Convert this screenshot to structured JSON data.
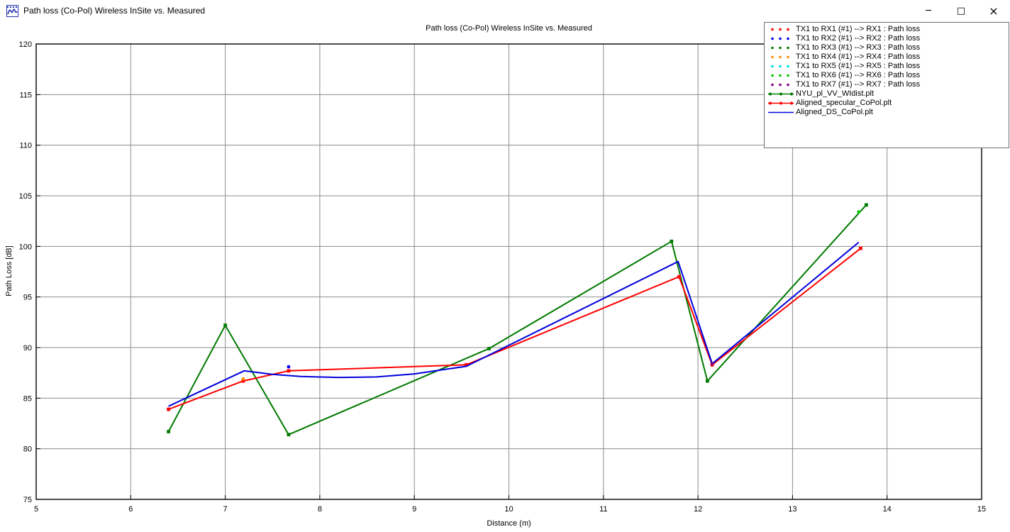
{
  "window": {
    "title": "Path loss (Co-Pol) Wireless InSite vs. Measured",
    "icons": {
      "minimize": "─",
      "maximize": "□",
      "close": "×"
    }
  },
  "chart_data": {
    "type": "line",
    "title": "Path loss (Co-Pol) Wireless InSite vs. Measured",
    "xlabel": "Distance (m)",
    "ylabel": "Path Loss [dB]",
    "xlim": [
      5,
      15
    ],
    "ylim": [
      75,
      120
    ],
    "x_ticks": [
      5,
      6,
      7,
      8,
      9,
      10,
      11,
      12,
      13,
      14,
      15
    ],
    "y_ticks": [
      75,
      80,
      85,
      90,
      95,
      100,
      105,
      110,
      115,
      120
    ],
    "grid": true,
    "grid_color": "#8c8c8c",
    "axis_color": "#000000",
    "legend_position": "top-right",
    "series": [
      {
        "name": "TX1 to RX1 (#1) --> RX1 : Path loss",
        "type": "scatter",
        "color": "#ff0000",
        "legend_marker": "dots",
        "points": [
          [
            6.4,
            83.9
          ]
        ]
      },
      {
        "name": "TX1 to RX2 (#1) --> RX2 : Path loss",
        "type": "scatter",
        "color": "#0000ff",
        "legend_marker": "dots",
        "points": [
          [
            7.67,
            88.1
          ]
        ]
      },
      {
        "name": "TX1 to RX3 (#1) --> RX3 : Path loss",
        "type": "scatter",
        "color": "#007a00",
        "legend_marker": "dots",
        "points": []
      },
      {
        "name": "TX1 to RX4 (#1) --> RX4 : Path loss",
        "type": "scatter",
        "color": "#ff8c00",
        "legend_marker": "dots",
        "points": [
          [
            7.19,
            86.9
          ]
        ]
      },
      {
        "name": "TX1 to RX5 (#1) --> RX5 : Path loss",
        "type": "scatter",
        "color": "#00dede",
        "legend_marker": "dots",
        "points": []
      },
      {
        "name": "TX1 to RX6 (#1) --> RX6 : Path loss",
        "type": "scatter",
        "color": "#00cc00",
        "legend_marker": "dots",
        "points": [
          [
            13.7,
            103.4
          ]
        ]
      },
      {
        "name": "TX1 to RX7 (#1) --> RX7 : Path loss",
        "type": "scatter",
        "color": "#800080",
        "legend_marker": "dots",
        "points": [
          [
            12.15,
            88.4
          ]
        ]
      },
      {
        "name": "NYU_pl_VV_WIdist.plt",
        "type": "line",
        "color": "#007a00",
        "legend_marker": "line-dots",
        "markers": true,
        "points": [
          [
            6.4,
            81.7
          ],
          [
            7.0,
            92.2
          ],
          [
            7.67,
            81.4
          ],
          [
            9.79,
            89.9
          ],
          [
            11.72,
            100.5
          ],
          [
            12.1,
            86.7
          ],
          [
            13.78,
            104.1
          ]
        ]
      },
      {
        "name": "Aligned_specular_CoPol.plt",
        "type": "line",
        "color": "#ff0000",
        "legend_marker": "line-dots",
        "markers": true,
        "points": [
          [
            6.4,
            83.9
          ],
          [
            7.19,
            86.7
          ],
          [
            7.67,
            87.7
          ],
          [
            9.55,
            88.3
          ],
          [
            11.8,
            97.0
          ],
          [
            12.15,
            88.3
          ],
          [
            13.72,
            99.8
          ]
        ]
      },
      {
        "name": "Aligned_DS_CoPol.plt",
        "type": "line",
        "color": "#0000dd",
        "legend_marker": "line",
        "markers": false,
        "points": [
          [
            6.4,
            84.2
          ],
          [
            7.2,
            87.7
          ],
          [
            7.5,
            87.35
          ],
          [
            7.8,
            87.15
          ],
          [
            8.2,
            87.05
          ],
          [
            8.6,
            87.1
          ],
          [
            9.0,
            87.4
          ],
          [
            9.55,
            88.15
          ],
          [
            11.79,
            98.5
          ],
          [
            12.15,
            88.4
          ],
          [
            13.7,
            100.4
          ]
        ]
      }
    ]
  }
}
